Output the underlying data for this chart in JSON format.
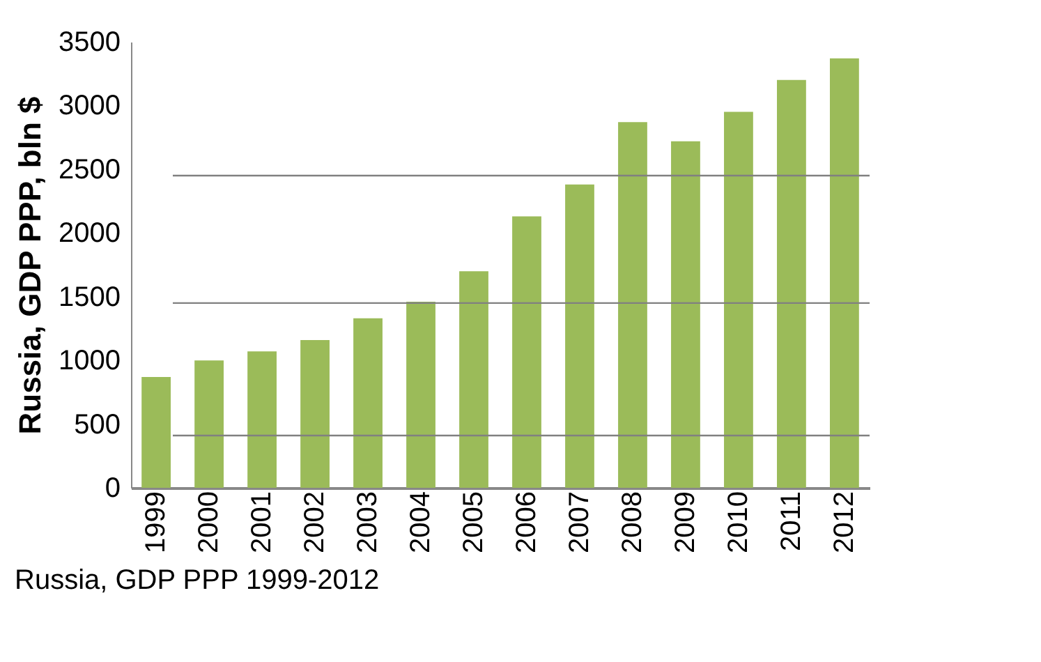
{
  "chart_data": {
    "type": "bar",
    "categories": [
      "1999",
      "2000",
      "2001",
      "2002",
      "2003",
      "2004",
      "2005",
      "2006",
      "2007",
      "2008",
      "2009",
      "2010",
      "2011",
      "2012"
    ],
    "values": [
      870,
      1000,
      1070,
      1160,
      1330,
      1460,
      1700,
      2130,
      2380,
      2870,
      2720,
      2950,
      3200,
      3370
    ],
    "color": "#9bbb59",
    "ylabel": "Russia, GDP PPP, bln $",
    "ylim": [
      0,
      3500
    ],
    "yticks": [
      0,
      500,
      1000,
      1500,
      2000,
      2500,
      3000,
      3500
    ],
    "ref_lines": [
      {
        "axis": "y",
        "value": 410,
        "color": "#808080"
      },
      {
        "axis": "y",
        "value": 1450,
        "color": "#808080"
      },
      {
        "axis": "y",
        "value": 2450,
        "color": "#808080"
      }
    ],
    "annotations": [
      "Russia, GDP PPP 1999-2012"
    ]
  }
}
